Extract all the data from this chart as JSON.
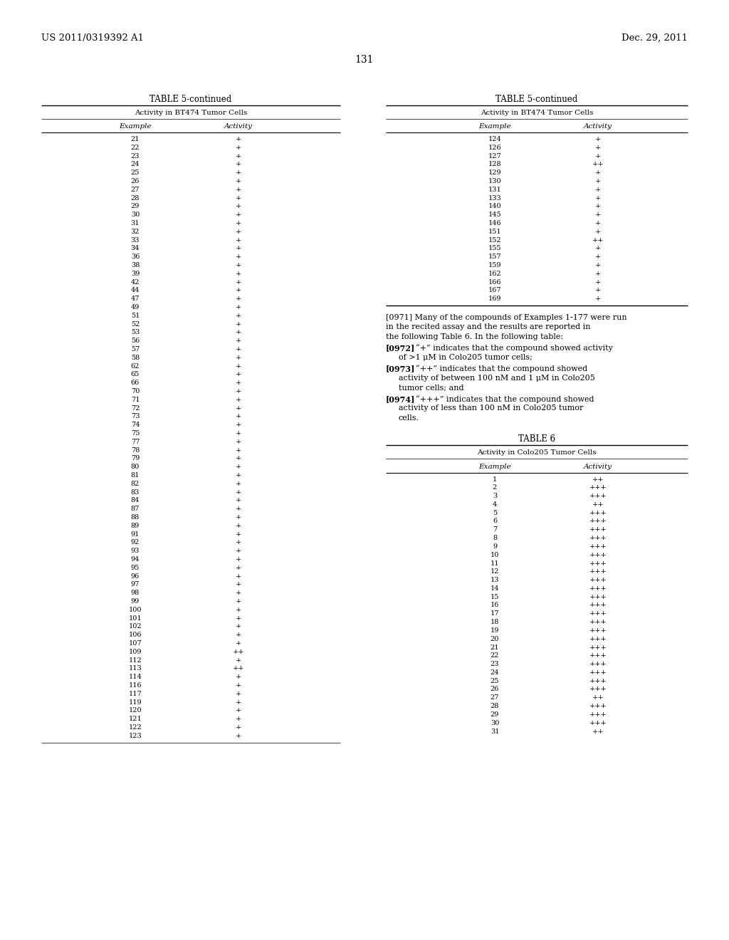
{
  "header_left": "US 2011/0319392 A1",
  "header_right": "Dec. 29, 2011",
  "page_number": "131",
  "table5_title": "TABLE 5-continued",
  "table5_subtitle": "Activity in BT474 Tumor Cells",
  "table5_col1": "Example",
  "table5_col2": "Activity",
  "table5_left_data": [
    [
      "21",
      "+"
    ],
    [
      "22",
      "+"
    ],
    [
      "23",
      "+"
    ],
    [
      "24",
      "+"
    ],
    [
      "25",
      "+"
    ],
    [
      "26",
      "+"
    ],
    [
      "27",
      "+"
    ],
    [
      "28",
      "+"
    ],
    [
      "29",
      "+"
    ],
    [
      "30",
      "+"
    ],
    [
      "31",
      "+"
    ],
    [
      "32",
      "+"
    ],
    [
      "33",
      "+"
    ],
    [
      "34",
      "+"
    ],
    [
      "36",
      "+"
    ],
    [
      "38",
      "+"
    ],
    [
      "39",
      "+"
    ],
    [
      "42",
      "+"
    ],
    [
      "44",
      "+"
    ],
    [
      "47",
      "+"
    ],
    [
      "49",
      "+"
    ],
    [
      "51",
      "+"
    ],
    [
      "52",
      "+"
    ],
    [
      "53",
      "+"
    ],
    [
      "56",
      "+"
    ],
    [
      "57",
      "+"
    ],
    [
      "58",
      "+"
    ],
    [
      "62",
      "+"
    ],
    [
      "65",
      "+"
    ],
    [
      "66",
      "+"
    ],
    [
      "70",
      "+"
    ],
    [
      "71",
      "+"
    ],
    [
      "72",
      "+"
    ],
    [
      "73",
      "+"
    ],
    [
      "74",
      "+"
    ],
    [
      "75",
      "+"
    ],
    [
      "77",
      "+"
    ],
    [
      "78",
      "+"
    ],
    [
      "79",
      "+"
    ],
    [
      "80",
      "+"
    ],
    [
      "81",
      "+"
    ],
    [
      "82",
      "+"
    ],
    [
      "83",
      "+"
    ],
    [
      "84",
      "+"
    ],
    [
      "87",
      "+"
    ],
    [
      "88",
      "+"
    ],
    [
      "89",
      "+"
    ],
    [
      "91",
      "+"
    ],
    [
      "92",
      "+"
    ],
    [
      "93",
      "+"
    ],
    [
      "94",
      "+"
    ],
    [
      "95",
      "+"
    ],
    [
      "96",
      "+"
    ],
    [
      "97",
      "+"
    ],
    [
      "98",
      "+"
    ],
    [
      "99",
      "+"
    ],
    [
      "100",
      "+"
    ],
    [
      "101",
      "+"
    ],
    [
      "102",
      "+"
    ],
    [
      "106",
      "+"
    ],
    [
      "107",
      "+"
    ],
    [
      "109",
      "++"
    ],
    [
      "112",
      "+"
    ],
    [
      "113",
      "++"
    ],
    [
      "114",
      "+"
    ],
    [
      "116",
      "+"
    ],
    [
      "117",
      "+"
    ],
    [
      "119",
      "+"
    ],
    [
      "120",
      "+"
    ],
    [
      "121",
      "+"
    ],
    [
      "122",
      "+"
    ],
    [
      "123",
      "+"
    ]
  ],
  "table5_right_data": [
    [
      "124",
      "+"
    ],
    [
      "126",
      "+"
    ],
    [
      "127",
      "+"
    ],
    [
      "128",
      "++"
    ],
    [
      "129",
      "+"
    ],
    [
      "130",
      "+"
    ],
    [
      "131",
      "+"
    ],
    [
      "133",
      "+"
    ],
    [
      "140",
      "+"
    ],
    [
      "145",
      "+"
    ],
    [
      "146",
      "+"
    ],
    [
      "151",
      "+"
    ],
    [
      "152",
      "++"
    ],
    [
      "155",
      "+"
    ],
    [
      "157",
      "+"
    ],
    [
      "159",
      "+"
    ],
    [
      "162",
      "+"
    ],
    [
      "166",
      "+"
    ],
    [
      "167",
      "+"
    ],
    [
      "169",
      "+"
    ]
  ],
  "para_0971": "[0971]   Many of the compounds of Examples 1-177 were run in the recited assay and the results are reported in the following Table 6. In the following table:",
  "para_0972_tag": "[0972]",
  "para_0972_body": "  “+” indicates that the compound showed activity of >1 μM in Colo205 tumor cells;",
  "para_0972_cont": "  >1 μM in Colo205 tumor cells;",
  "para_0973_tag": "[0973]",
  "para_0973_body": "  “++” indicates that the compound showed activity of between 100 nM and 1 μM in Colo205 tumor cells; and",
  "para_0973_cont": "  of between 100 nM and 1 μM in Colo205 tumor cells; and",
  "para_0974_tag": "[0974]",
  "para_0974_body": "  “+++” indicates that the compound showed activity of less than 100 nM in Colo205 tumor cells.",
  "para_0974_cont": "  of less than 100 nM in Colo205 tumor cells.",
  "table6_title": "TABLE 6",
  "table6_subtitle": "Activity in Colo205 Tumor Cells",
  "table6_col1": "Example",
  "table6_col2": "Activity",
  "table6_data": [
    [
      "1",
      "++"
    ],
    [
      "2",
      "+++"
    ],
    [
      "3",
      "+++"
    ],
    [
      "4",
      "++"
    ],
    [
      "5",
      "+++"
    ],
    [
      "6",
      "+++"
    ],
    [
      "7",
      "+++"
    ],
    [
      "8",
      "+++"
    ],
    [
      "9",
      "+++"
    ],
    [
      "10",
      "+++"
    ],
    [
      "11",
      "+++"
    ],
    [
      "12",
      "+++"
    ],
    [
      "13",
      "+++"
    ],
    [
      "14",
      "+++"
    ],
    [
      "15",
      "+++"
    ],
    [
      "16",
      "+++"
    ],
    [
      "17",
      "+++"
    ],
    [
      "18",
      "+++"
    ],
    [
      "19",
      "+++"
    ],
    [
      "20",
      "+++"
    ],
    [
      "21",
      "+++"
    ],
    [
      "22",
      "+++"
    ],
    [
      "23",
      "+++"
    ],
    [
      "24",
      "+++"
    ],
    [
      "25",
      "+++"
    ],
    [
      "26",
      "+++"
    ],
    [
      "27",
      "++"
    ],
    [
      "28",
      "+++"
    ],
    [
      "29",
      "+++"
    ],
    [
      "30",
      "+++"
    ],
    [
      "31",
      "++"
    ]
  ],
  "bg_color": "#ffffff",
  "text_color": "#000000"
}
